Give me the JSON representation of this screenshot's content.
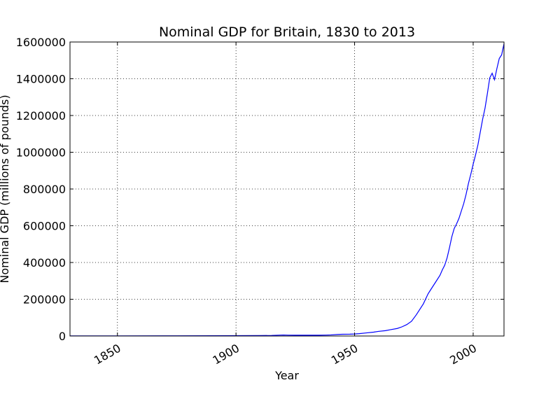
{
  "chart_data": {
    "type": "line",
    "title": "Nominal GDP for Britain, 1830 to 2013",
    "xlabel": "Year",
    "ylabel": "Nominal GDP (millions of pounds)",
    "xlim": [
      1830,
      2013
    ],
    "ylim": [
      0,
      1600000
    ],
    "xticks": [
      1850,
      1900,
      1950,
      2000
    ],
    "yticks": [
      0,
      200000,
      400000,
      600000,
      800000,
      1000000,
      1200000,
      1400000,
      1600000
    ],
    "grid": true,
    "legend": "none",
    "line_color": "#0000ff",
    "series": [
      {
        "x": [
          1830,
          1850,
          1870,
          1890,
          1900,
          1910,
          1915,
          1918,
          1920,
          1922,
          1925,
          1930,
          1935,
          1938,
          1940,
          1943,
          1945,
          1948,
          1950,
          1952,
          1955,
          1958,
          1960,
          1963,
          1965,
          1968,
          1970,
          1972,
          1974,
          1976,
          1977,
          1979,
          1981,
          1982,
          1984,
          1986,
          1987,
          1988,
          1989,
          1990,
          1991,
          1992,
          1993,
          1994,
          1995,
          1996,
          1997,
          1998,
          1999,
          2000,
          2001,
          2002,
          2003,
          2004,
          2005,
          2006,
          2007,
          2008,
          2009,
          2010,
          2011,
          2012,
          2013
        ],
        "y": [
          400,
          600,
          1000,
          1500,
          1900,
          2300,
          3000,
          4500,
          5500,
          4500,
          4200,
          4300,
          4300,
          5000,
          6000,
          8500,
          9500,
          10000,
          11000,
          13000,
          17000,
          21000,
          25000,
          29000,
          34000,
          41000,
          50000,
          62000,
          80000,
          115000,
          135000,
          175000,
          230000,
          250000,
          290000,
          330000,
          360000,
          385000,
          425000,
          480000,
          540000,
          585000,
          610000,
          640000,
          680000,
          720000,
          770000,
          830000,
          880000,
          935000,
          985000,
          1040000,
          1110000,
          1180000,
          1240000,
          1320000,
          1405000,
          1430000,
          1395000,
          1455000,
          1510000,
          1530000,
          1590000
        ]
      }
    ]
  }
}
